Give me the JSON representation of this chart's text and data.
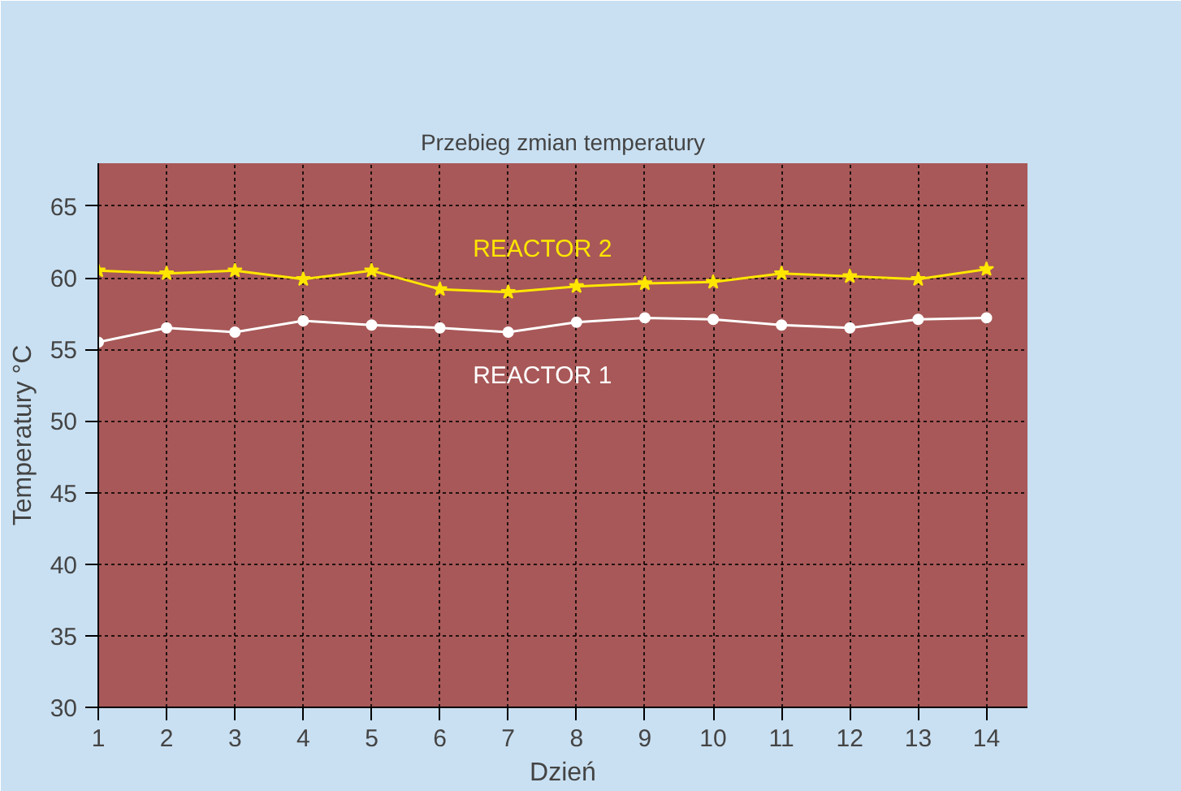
{
  "chart_data": {
    "type": "line",
    "title": "Przebieg zmian temperatury",
    "xlabel": "Dzień",
    "ylabel": "Temperatury °C",
    "x": [
      1,
      2,
      3,
      4,
      5,
      6,
      7,
      8,
      9,
      10,
      11,
      12,
      13,
      14
    ],
    "series": [
      {
        "name": "REACTOR 2",
        "color": "#ffe600",
        "marker": "star",
        "values": [
          60.5,
          60.3,
          60.5,
          59.9,
          60.5,
          59.2,
          59.0,
          59.4,
          59.6,
          59.7,
          60.3,
          60.1,
          59.9,
          60.6
        ]
      },
      {
        "name": "REACTOR 1",
        "color": "#ffffff",
        "marker": "circle",
        "values": [
          55.5,
          56.5,
          56.2,
          57.0,
          56.7,
          56.5,
          56.2,
          56.9,
          57.2,
          57.1,
          56.7,
          56.5,
          57.1,
          57.2
        ]
      }
    ],
    "xlim": [
      1,
      14.6
    ],
    "xticks": [
      1,
      2,
      3,
      4,
      5,
      6,
      7,
      8,
      9,
      10,
      11,
      12,
      13,
      14
    ],
    "ylim": [
      30,
      68
    ],
    "yticks": [
      30,
      35,
      40,
      45,
      50,
      55,
      60,
      65
    ],
    "grid": true,
    "line_style": "solid"
  }
}
